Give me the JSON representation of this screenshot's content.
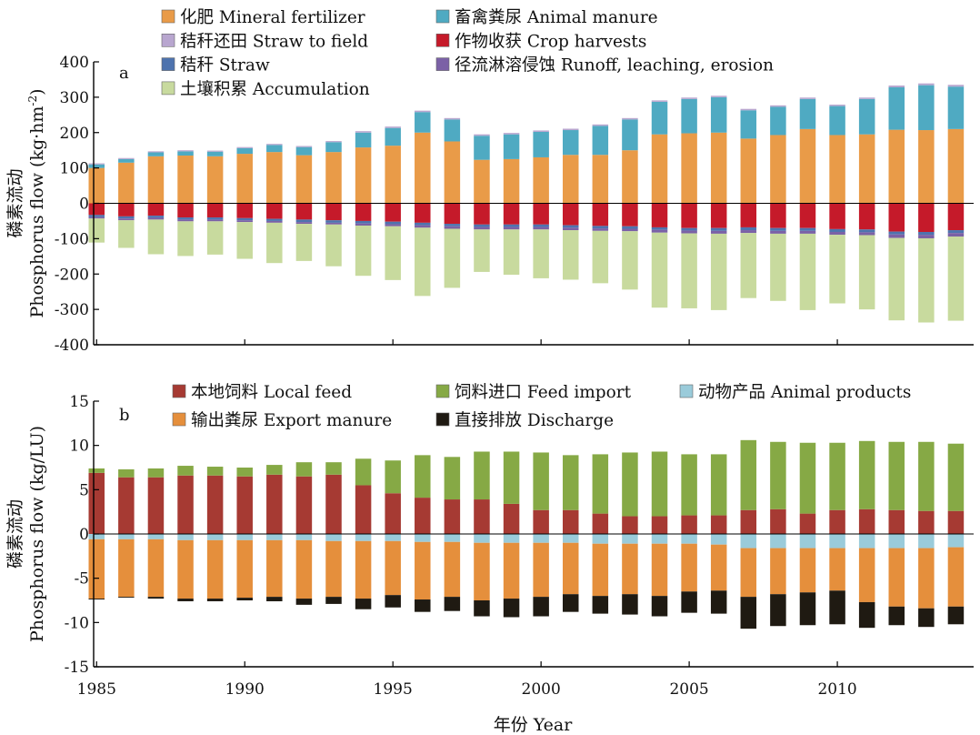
{
  "x_title": "年份 Year",
  "chart_data": [
    {
      "type": "bar",
      "stacked": true,
      "panel_label": "a",
      "ylabel_cn": "磷素流动",
      "ylabel_en": "Phosphorus flow (kg·hm",
      "ylabel_sup": "-2",
      "ylabel_close": ")",
      "ylim": [
        -400,
        400
      ],
      "yticks": [
        -400,
        -300,
        -200,
        -100,
        0,
        100,
        200,
        300,
        400
      ],
      "xlim": [
        1984.9,
        2014.6
      ],
      "xticks": [
        1985,
        1990,
        1995,
        2000,
        2005,
        2010
      ],
      "x": [
        1985,
        1986,
        1987,
        1988,
        1989,
        1990,
        1991,
        1992,
        1993,
        1994,
        1995,
        1996,
        1997,
        1998,
        1999,
        2000,
        2001,
        2002,
        2003,
        2004,
        2005,
        2006,
        2007,
        2008,
        2009,
        2010,
        2011,
        2012,
        2013,
        2014
      ],
      "legend_columns": [
        [
          {
            "series_index": 0,
            "label": "化肥 Mineral fertilizer"
          },
          {
            "series_index": 2,
            "label": "秸秆还田 Straw to field"
          },
          {
            "series_index": 4,
            "label": "秸秆 Straw"
          },
          {
            "series_index": 6,
            "label": "土壤积累 Accumulation"
          }
        ],
        [
          {
            "series_index": 1,
            "label": "畜禽粪尿 Animal manure"
          },
          {
            "series_index": 3,
            "label": "作物收获 Crop harvests"
          },
          {
            "series_index": 5,
            "label": "径流淋溶侵蚀 Runoff, leaching, erosion"
          }
        ]
      ],
      "series": [
        {
          "name": "化肥 Mineral fertilizer",
          "color": "#E99B48",
          "sign": "positive",
          "values": [
            100,
            115,
            133,
            135,
            133,
            140,
            145,
            136,
            145,
            158,
            163,
            200,
            175,
            123,
            125,
            130,
            137,
            137,
            150,
            195,
            198,
            200,
            183,
            193,
            210,
            193,
            195,
            208,
            207,
            210
          ]
        },
        {
          "name": "畜禽粪尿 Animal manure",
          "color": "#4FAAC2",
          "sign": "positive",
          "values": [
            10,
            10,
            11,
            12,
            13,
            16,
            20,
            23,
            28,
            42,
            50,
            58,
            62,
            68,
            70,
            72,
            70,
            82,
            87,
            92,
            97,
            100,
            80,
            80,
            85,
            82,
            100,
            120,
            127,
            120
          ]
        },
        {
          "name": "秸秆还田 Straw to field",
          "color": "#B8A6CF",
          "sign": "positive",
          "values": [
            3,
            3,
            3,
            3,
            3,
            3,
            3,
            3,
            3,
            4,
            4,
            4,
            4,
            4,
            4,
            4,
            4,
            4,
            4,
            4,
            4,
            4,
            4,
            4,
            4,
            4,
            4,
            5,
            5,
            5
          ]
        },
        {
          "name": "作物收获 Crop harvests",
          "color": "#C51A2A",
          "sign": "negative",
          "values": [
            -33,
            -37,
            -35,
            -40,
            -40,
            -42,
            -44,
            -46,
            -48,
            -50,
            -52,
            -55,
            -58,
            -60,
            -60,
            -60,
            -62,
            -64,
            -65,
            -68,
            -70,
            -70,
            -68,
            -70,
            -70,
            -73,
            -74,
            -80,
            -81,
            -76
          ]
        },
        {
          "name": "秸秆 Straw",
          "color": "#4E73AE",
          "sign": "negative",
          "values": [
            -6,
            -6,
            -6,
            -6,
            -6,
            -6,
            -6,
            -7,
            -7,
            -7,
            -7,
            -7,
            -7,
            -7,
            -7,
            -7,
            -7,
            -7,
            -7,
            -7,
            -7,
            -8,
            -8,
            -8,
            -8,
            -8,
            -8,
            -8,
            -8,
            -8
          ]
        },
        {
          "name": "径流淋溶侵蚀 Runoff, leaching, erosion",
          "color": "#7B61A6",
          "sign": "negative",
          "values": [
            -4,
            -5,
            -5,
            -5,
            -5,
            -5,
            -5,
            -5,
            -5,
            -6,
            -6,
            -7,
            -7,
            -7,
            -7,
            -7,
            -7,
            -7,
            -7,
            -8,
            -8,
            -8,
            -8,
            -8,
            -8,
            -8,
            -8,
            -10,
            -10,
            -10
          ]
        },
        {
          "name": "土壤积累 Accumulation",
          "color": "#C8DA9E",
          "sign": "negative",
          "values": [
            -68,
            -78,
            -98,
            -98,
            -94,
            -104,
            -114,
            -105,
            -118,
            -142,
            -152,
            -193,
            -167,
            -120,
            -128,
            -138,
            -140,
            -148,
            -165,
            -212,
            -212,
            -216,
            -184,
            -190,
            -216,
            -194,
            -210,
            -233,
            -238,
            -238
          ]
        }
      ]
    },
    {
      "type": "bar",
      "stacked": true,
      "panel_label": "b",
      "ylabel_cn": "磷素流动",
      "ylabel_en": "Phosphorus flow (kg/LU)",
      "ylim": [
        -15,
        15
      ],
      "yticks": [
        -15,
        -10,
        -5,
        0,
        5,
        10,
        15
      ],
      "xlim": [
        1984.9,
        2014.6
      ],
      "xticks": [
        1985,
        1990,
        1995,
        2000,
        2005,
        2010
      ],
      "x": [
        1985,
        1986,
        1987,
        1988,
        1989,
        1990,
        1991,
        1992,
        1993,
        1994,
        1995,
        1996,
        1997,
        1998,
        1999,
        2000,
        2001,
        2002,
        2003,
        2004,
        2005,
        2006,
        2007,
        2008,
        2009,
        2010,
        2011,
        2012,
        2013,
        2014
      ],
      "legend_columns": [
        [
          {
            "series_index": 0,
            "label": "本地饲料 Local feed"
          },
          {
            "series_index": 3,
            "label": "输出粪尿 Export manure"
          }
        ],
        [
          {
            "series_index": 1,
            "label": "饲料进口 Feed import"
          },
          {
            "series_index": 4,
            "label": "直接排放 Discharge"
          }
        ],
        [
          {
            "series_index": 2,
            "label": "动物产品 Animal products"
          }
        ]
      ],
      "series": [
        {
          "name": "本地饲料 Local feed",
          "color": "#A63A33",
          "sign": "positive",
          "values": [
            6.9,
            6.4,
            6.4,
            6.6,
            6.6,
            6.5,
            6.7,
            6.5,
            6.7,
            5.5,
            4.6,
            4.1,
            3.9,
            3.9,
            3.4,
            2.7,
            2.7,
            2.3,
            2.0,
            2.0,
            2.1,
            2.1,
            2.7,
            2.8,
            2.3,
            2.7,
            2.8,
            2.7,
            2.6,
            2.6
          ]
        },
        {
          "name": "饲料进口 Feed import",
          "color": "#86A945",
          "sign": "positive",
          "values": [
            0.5,
            0.9,
            1.0,
            1.1,
            1.0,
            1.0,
            1.1,
            1.6,
            1.4,
            3.0,
            3.7,
            4.8,
            4.8,
            5.4,
            5.9,
            6.5,
            6.2,
            6.7,
            7.2,
            7.3,
            6.9,
            6.9,
            7.9,
            7.6,
            8.0,
            7.6,
            7.7,
            7.7,
            7.8,
            7.6
          ]
        },
        {
          "name": "动物产品 Animal products",
          "color": "#9ACBDA",
          "sign": "negative",
          "values": [
            -0.6,
            -0.6,
            -0.6,
            -0.7,
            -0.7,
            -0.7,
            -0.7,
            -0.7,
            -0.8,
            -0.8,
            -0.8,
            -0.9,
            -0.9,
            -1.0,
            -1.0,
            -1.0,
            -1.0,
            -1.1,
            -1.1,
            -1.1,
            -1.1,
            -1.2,
            -1.6,
            -1.6,
            -1.6,
            -1.6,
            -1.6,
            -1.6,
            -1.6,
            -1.5
          ]
        },
        {
          "name": "输出粪尿 Export manure",
          "color": "#E58F3C",
          "sign": "negative",
          "values": [
            -6.7,
            -6.5,
            -6.5,
            -6.6,
            -6.6,
            -6.5,
            -6.4,
            -6.6,
            -6.3,
            -6.5,
            -6.1,
            -6.5,
            -6.2,
            -6.5,
            -6.3,
            -6.1,
            -5.8,
            -5.9,
            -5.7,
            -5.9,
            -5.4,
            -5.2,
            -5.5,
            -5.2,
            -5.0,
            -4.8,
            -6.1,
            -6.6,
            -6.8,
            -6.7
          ]
        },
        {
          "name": "直接排放 Discharge",
          "color": "#1F1A12",
          "sign": "negative",
          "values": [
            -0.1,
            -0.1,
            -0.2,
            -0.3,
            -0.3,
            -0.3,
            -0.5,
            -0.7,
            -0.8,
            -1.2,
            -1.4,
            -1.4,
            -1.6,
            -1.8,
            -2.1,
            -2.2,
            -2.0,
            -2.0,
            -2.3,
            -2.3,
            -2.4,
            -2.6,
            -3.6,
            -3.6,
            -3.7,
            -3.8,
            -2.9,
            -2.1,
            -2.1,
            -2.0
          ]
        }
      ]
    }
  ]
}
